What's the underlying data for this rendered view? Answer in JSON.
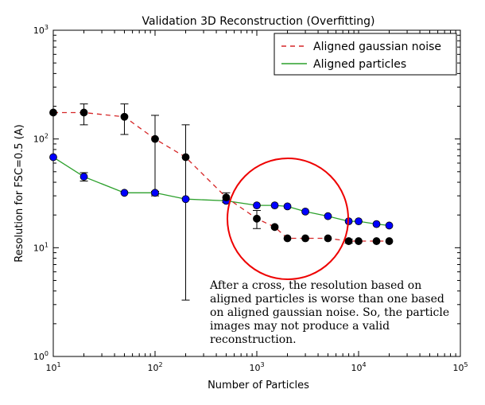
{
  "chart_data": {
    "type": "line",
    "title": "Validation 3D Reconstruction (Overfitting)",
    "xlabel": "Number of Particles",
    "ylabel": "Resolution for FSC=0.5 (A)",
    "xscale": "log",
    "yscale": "log",
    "xlim": [
      10,
      100000
    ],
    "ylim": [
      1,
      1000
    ],
    "x_ticks": [
      {
        "base": "10",
        "exp": "1"
      },
      {
        "base": "10",
        "exp": "2"
      },
      {
        "base": "10",
        "exp": "3"
      },
      {
        "base": "10",
        "exp": "4"
      },
      {
        "base": "10",
        "exp": "5"
      }
    ],
    "y_ticks": [
      {
        "base": "10",
        "exp": "0"
      },
      {
        "base": "10",
        "exp": "1"
      },
      {
        "base": "10",
        "exp": "2"
      },
      {
        "base": "10",
        "exp": "3"
      }
    ],
    "legend_position": "top-right",
    "series": [
      {
        "name": "Aligned gaussian noise",
        "line_color": "#d62728",
        "line_style": "dashed",
        "marker_color": "#000000",
        "x": [
          10,
          20,
          50,
          100,
          200,
          500,
          1000,
          1500,
          2000,
          3000,
          5000,
          8000,
          10000,
          15000,
          20000
        ],
        "y": [
          175,
          175,
          160,
          100,
          68,
          29,
          18.5,
          15.5,
          12.2,
          12.2,
          12.2,
          11.5,
          11.5,
          11.5,
          11.5
        ],
        "err_low": [
          175,
          135,
          110,
          30,
          3.3,
          26,
          15,
          15.5,
          12.2,
          12.2,
          12.2,
          11,
          11.5,
          11.5,
          11.5
        ],
        "err_high": [
          175,
          210,
          210,
          165,
          135,
          32,
          22,
          15.5,
          12.2,
          12.2,
          12.2,
          12,
          11.5,
          11.5,
          11.5
        ]
      },
      {
        "name": "Aligned particles",
        "line_color": "#2ca02c",
        "line_style": "solid",
        "marker_color": "#0000ff",
        "x": [
          10,
          20,
          50,
          100,
          200,
          500,
          1000,
          1500,
          2000,
          3000,
          5000,
          8000,
          10000,
          15000,
          20000
        ],
        "y": [
          68,
          45,
          32,
          32,
          28,
          27,
          24.5,
          24.5,
          24,
          21.5,
          19.5,
          17.5,
          17.5,
          16.5,
          16
        ],
        "err_low": [
          68,
          41,
          32,
          31,
          28,
          27,
          24.5,
          24.5,
          24,
          21.5,
          19.5,
          17.5,
          17.5,
          16.5,
          16
        ],
        "err_high": [
          68,
          49,
          32,
          33,
          28,
          27,
          24.5,
          24.5,
          24,
          21.5,
          19.5,
          17.5,
          17.5,
          16.5,
          16
        ]
      }
    ],
    "annotation": {
      "lines": [
        "After a cross, the resolution based on",
        "aligned particles is worse than one based",
        "on aligned gaussian noise. So, the particle",
        "images may not produce a valid",
        "reconstruction."
      ],
      "circle_color": "#ee0000"
    }
  }
}
